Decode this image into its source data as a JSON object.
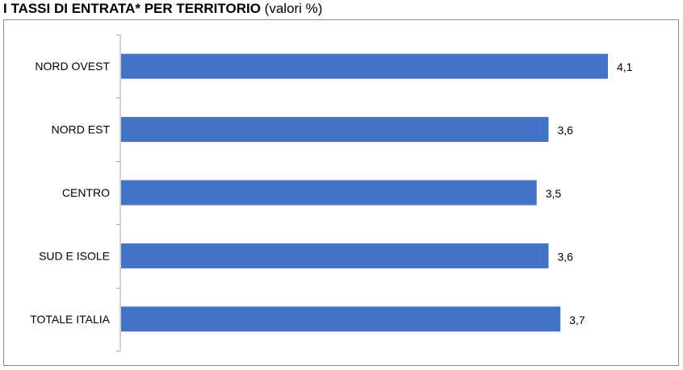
{
  "title": {
    "main": "I TASSI DI ENTRATA* PER TERRITORIO",
    "sub": "(valori %)"
  },
  "chart_data": {
    "type": "bar",
    "orientation": "horizontal",
    "title": "I TASSI DI ENTRATA* PER TERRITORIO (valori %)",
    "categories": [
      "NORD OVEST",
      "NORD EST",
      "CENTRO",
      "SUD E ISOLE",
      "TOTALE ITALIA"
    ],
    "values": [
      4.1,
      3.6,
      3.5,
      3.6,
      3.7
    ],
    "value_labels": [
      "4,1",
      "3,6",
      "3,5",
      "3,6",
      "3,7"
    ],
    "xlabel": "",
    "ylabel": "",
    "xlim": [
      0,
      4.1
    ],
    "grid": false,
    "bar_color": "#4472c4",
    "axis_color": "#a6a6a6"
  }
}
